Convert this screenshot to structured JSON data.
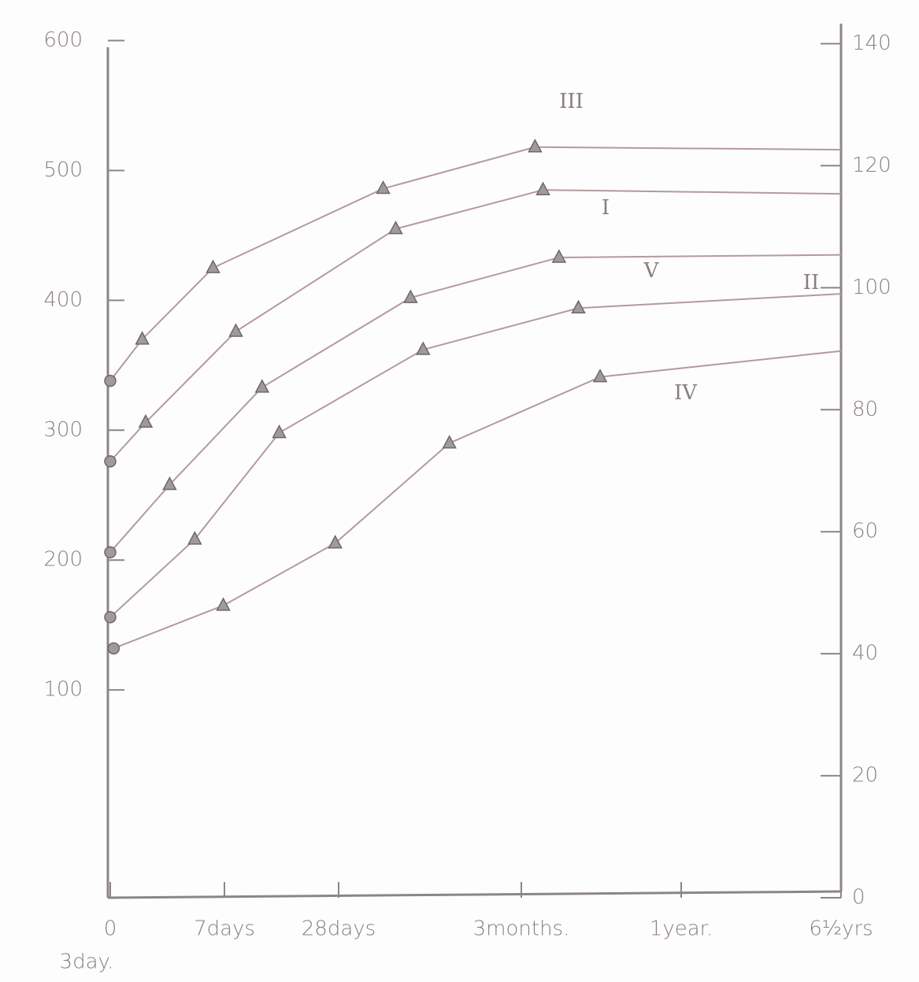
{
  "chart_data": {
    "type": "line",
    "xlim": [
      0,
      6.4
    ],
    "xticks": [
      {
        "value": 0,
        "label": "0"
      },
      {
        "value": 1,
        "label": "7days"
      },
      {
        "value": 2,
        "label": "28days"
      },
      {
        "value": 3.6,
        "label": "3months."
      },
      {
        "value": 5,
        "label": "1year."
      },
      {
        "value": 6.4,
        "label": "6½yrs"
      }
    ],
    "x_note": "3day.",
    "ylim": [
      -60,
      607
    ],
    "yticks": [
      100,
      200,
      300,
      400,
      500,
      600
    ],
    "y2lim": [
      0,
      142
    ],
    "y2ticks": [
      0,
      20,
      40,
      60,
      80,
      100,
      120,
      140
    ],
    "color": "#b59a9a",
    "series": [
      {
        "name": "III",
        "x": [
          0,
          0.28,
          0.9,
          2.39,
          3.72,
          6.4
        ],
        "values": [
          338,
          370,
          425,
          486,
          518,
          516
        ]
      },
      {
        "name": "I",
        "x": [
          0,
          0.31,
          1.1,
          2.5,
          3.79,
          6.4
        ],
        "values": [
          276,
          306,
          376,
          455,
          485,
          482
        ]
      },
      {
        "name": "V",
        "x": [
          0,
          0.52,
          1.33,
          2.63,
          3.93,
          6.4
        ],
        "values": [
          206,
          258,
          333,
          402,
          433,
          435
        ]
      },
      {
        "name": "II",
        "x": [
          0,
          0.74,
          1.48,
          2.74,
          4.1,
          6.4
        ],
        "values": [
          156,
          216,
          298,
          362,
          394,
          405
        ]
      },
      {
        "name": "IV",
        "x": [
          0.03,
          0.99,
          1.97,
          2.97,
          4.29,
          6.4
        ],
        "values": [
          132,
          165,
          213,
          290,
          341,
          361
        ]
      }
    ]
  }
}
